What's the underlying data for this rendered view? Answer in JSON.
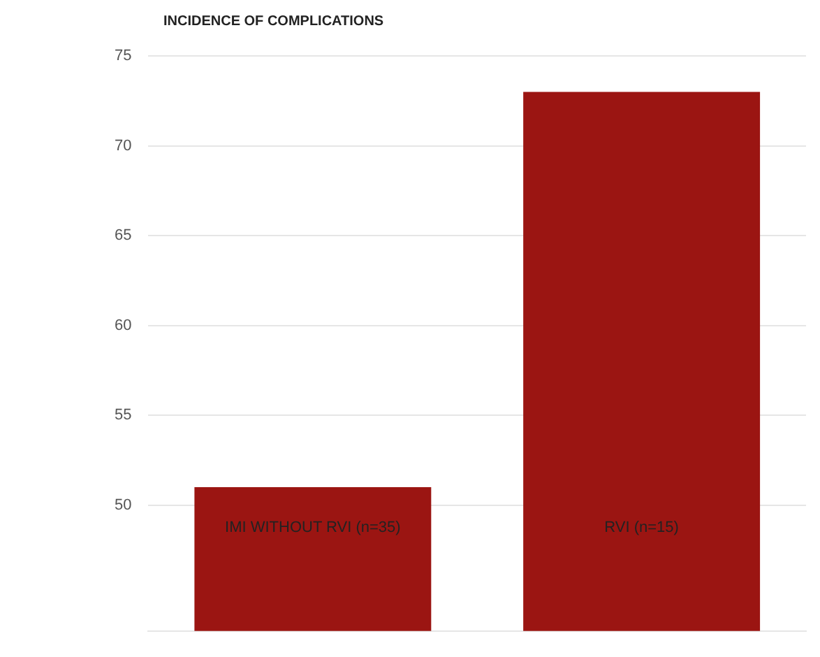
{
  "chart_data": {
    "type": "bar",
    "title": "INCIDENCE OF COMPLICATIONS",
    "categories": [
      "IMI WITHOUT RVI (n=35)",
      "RVI (n=15)"
    ],
    "values": [
      51,
      73
    ],
    "color": "#9b1512",
    "ylim": [
      43,
      75
    ],
    "yticks": [
      50,
      55,
      60,
      65,
      70,
      75
    ],
    "grid": "y",
    "legend": false
  }
}
